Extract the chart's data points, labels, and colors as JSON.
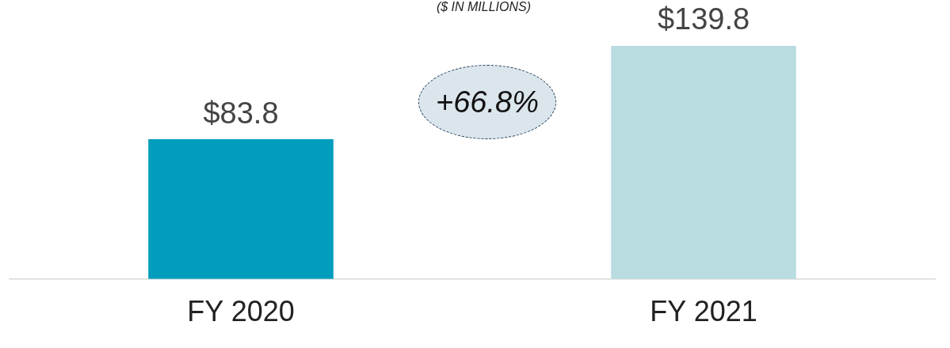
{
  "chart_data": {
    "type": "bar",
    "subtitle": "($ IN MILLIONS)",
    "categories": [
      "FY 2020",
      "FY 2021"
    ],
    "values": [
      83.8,
      139.8
    ],
    "colors": [
      "#029dbd",
      "#b9dce0"
    ],
    "value_labels": [
      "$83.8",
      "$139.8"
    ],
    "annotations": [
      "+66.8%"
    ],
    "grid": false,
    "legend": false
  }
}
